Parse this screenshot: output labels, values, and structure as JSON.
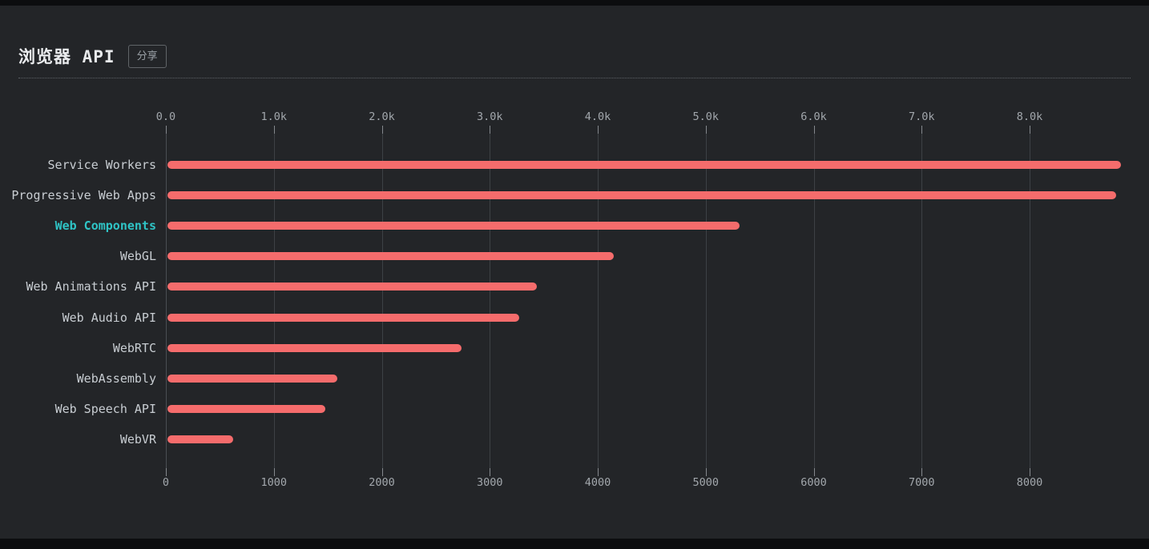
{
  "header": {
    "title": "浏览器 API",
    "share_label": "分享"
  },
  "chart_data": {
    "type": "bar",
    "orientation": "horizontal",
    "title": "浏览器 API",
    "xlabel": "",
    "ylabel": "",
    "categories": [
      "Service Workers",
      "Progressive Web Apps",
      "Web Components",
      "WebGL",
      "Web Animations API",
      "Web Audio API",
      "WebRTC",
      "WebAssembly",
      "Web Speech API",
      "WebVR"
    ],
    "values": [
      8830,
      8790,
      5300,
      4130,
      3420,
      3260,
      2720,
      1570,
      1460,
      610
    ],
    "highlighted_category": "Web Components",
    "axis_tick_values": [
      0,
      1000,
      2000,
      3000,
      4000,
      5000,
      6000,
      7000,
      8000
    ],
    "top_axis_ticks": [
      "0.0",
      "1.0k",
      "2.0k",
      "3.0k",
      "4.0k",
      "5.0k",
      "6.0k",
      "7.0k",
      "8.0k"
    ],
    "bottom_axis_ticks": [
      "0",
      "1000",
      "2000",
      "3000",
      "4000",
      "5000",
      "6000",
      "7000",
      "8000"
    ],
    "xlim": [
      0,
      8900
    ],
    "grid": true,
    "legend": false,
    "colors": {
      "bar": "#f56c6c",
      "label": "#c8cdd2",
      "highlight_label": "#2fc4c6",
      "axis_label": "#a2a7ac",
      "gridline": "#3d4145",
      "tick": "#84888d",
      "background": "#232528",
      "title": "#e9ebed"
    }
  }
}
